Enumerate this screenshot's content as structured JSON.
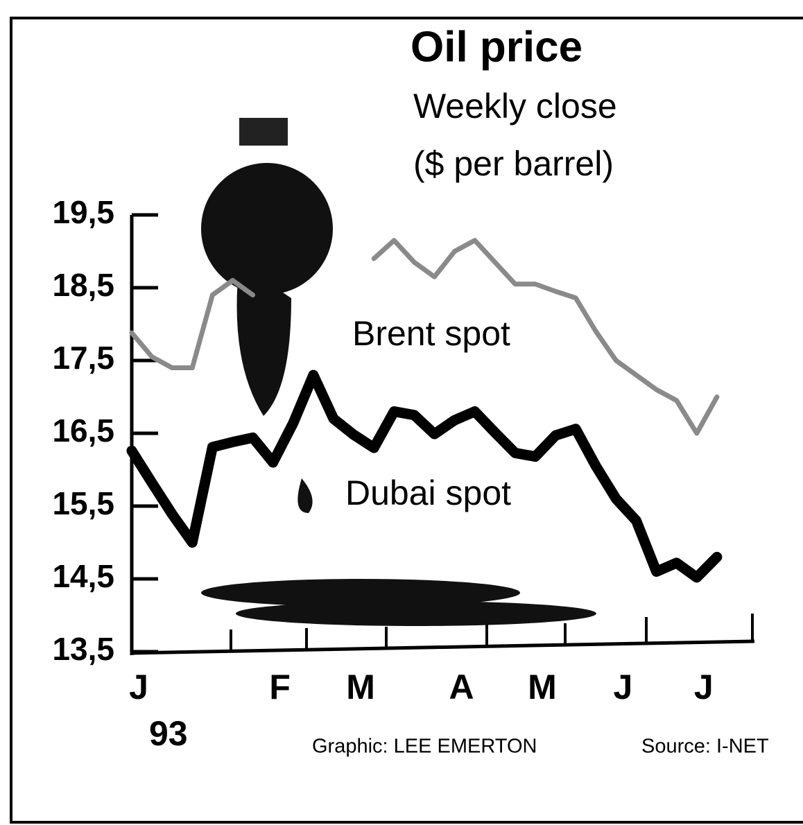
{
  "chart_data": {
    "type": "line",
    "title": "Oil price",
    "subtitle": [
      "Weekly close",
      "($ per barrel)"
    ],
    "categories": [
      "J",
      null,
      null,
      null,
      null,
      null,
      null,
      "F",
      null,
      null,
      null,
      "M",
      null,
      null,
      null,
      null,
      "A",
      null,
      null,
      null,
      "M",
      null,
      null,
      null,
      "J",
      null,
      null,
      null,
      "J",
      null
    ],
    "year_label": "93",
    "series": [
      {
        "name": "Brent spot",
        "color": "#8a8a8a",
        "values": [
          17.88,
          17.55,
          17.4,
          17.4,
          18.4,
          18.6,
          18.4,
          null,
          null,
          null,
          null,
          null,
          18.9,
          19.15,
          18.85,
          18.65,
          19.0,
          19.15,
          18.85,
          18.55,
          18.55,
          18.45,
          18.36,
          17.9,
          17.5,
          17.3,
          17.1,
          16.95,
          16.5,
          17.0
        ]
      },
      {
        "name": "Dubai spot",
        "color": "#000000",
        "values": [
          16.26,
          15.82,
          15.39,
          15.0,
          16.31,
          16.38,
          16.44,
          16.1,
          16.64,
          17.3,
          16.7,
          16.48,
          16.3,
          16.8,
          16.75,
          16.49,
          16.68,
          16.8,
          16.51,
          16.23,
          16.18,
          16.47,
          16.56,
          16.05,
          15.6,
          15.3,
          14.6,
          14.72,
          14.52,
          14.8
        ]
      }
    ],
    "ylim": [
      13.5,
      19.5
    ],
    "yticks": [
      {
        "value": 13.5,
        "label": "13,5"
      },
      {
        "value": 14.5,
        "label": "14,5"
      },
      {
        "value": 15.5,
        "label": "15,5"
      },
      {
        "value": 16.5,
        "label": "16,5"
      },
      {
        "value": 17.5,
        "label": "17,5"
      },
      {
        "value": 18.5,
        "label": "18,5"
      },
      {
        "value": 19.5,
        "label": "19,5"
      }
    ],
    "credit": "Graphic: LEE EMERTON",
    "source": "Source: I-NET"
  }
}
